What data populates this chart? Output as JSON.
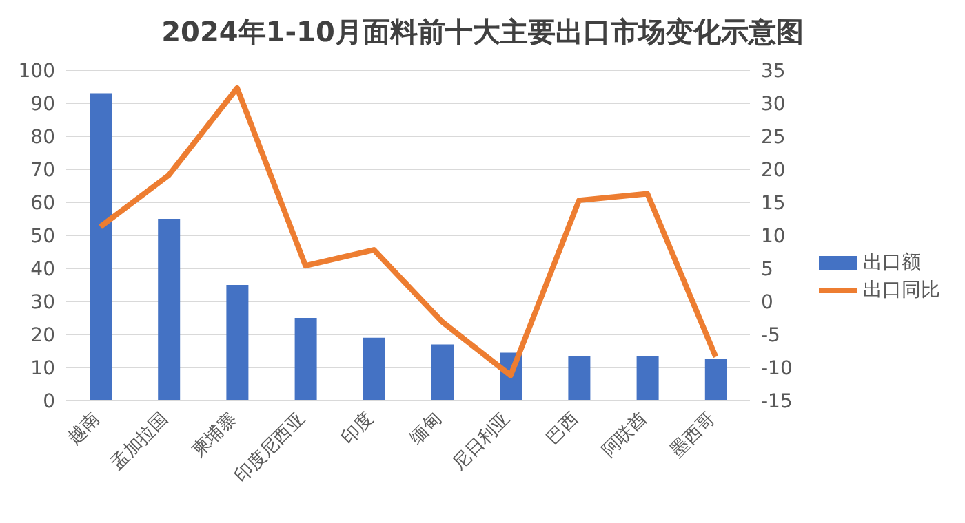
{
  "chart_data": {
    "type": "bar",
    "title": "2024年1-10月面料前十大主要出口市场变化示意图",
    "categories": [
      "越南",
      "孟加拉国",
      "柬埔寨",
      "印度尼西亚",
      "印度",
      "缅甸",
      "尼日利亚",
      "巴西",
      "阿联酋",
      "墨西哥"
    ],
    "series": [
      {
        "name": "出口额",
        "color": "#4472c4",
        "values": [
          93,
          55,
          35,
          25,
          19,
          17,
          14.5,
          13.5,
          13.5,
          12.5
        ]
      },
      {
        "name": "出口同比",
        "type": "line",
        "axis": "y2",
        "color": "#ed7d31",
        "values": [
          11.3,
          19.1,
          32.3,
          5.4,
          7.8,
          -3.1,
          -11.2,
          15.3,
          16.3,
          -8.4
        ]
      }
    ],
    "ylim": [
      0,
      100
    ],
    "yticks": [
      0,
      10,
      20,
      30,
      40,
      50,
      60,
      70,
      80,
      90,
      100
    ],
    "y2lim": [
      -15,
      35
    ],
    "y2ticks": [
      -15,
      -10,
      -5,
      0,
      5,
      10,
      15,
      20,
      25,
      30,
      35
    ],
    "grid": "y",
    "legend": "right",
    "marker": "none"
  }
}
